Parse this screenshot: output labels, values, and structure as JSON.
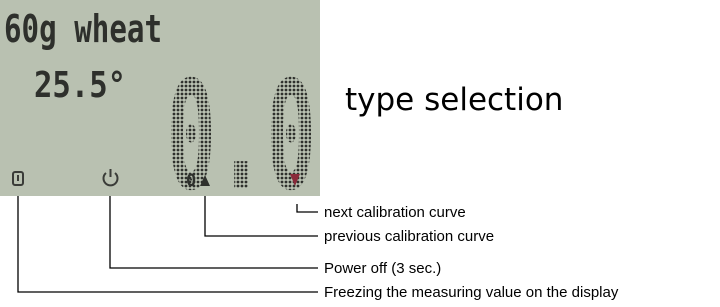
{
  "display": {
    "product": "60g wheat",
    "temperature": "25.5°",
    "reading": "0.0",
    "key_label": "0"
  },
  "heading": "type selection",
  "callouts": [
    "next calibration curve",
    "previous calibration curve",
    "Power off (3 sec.)",
    "Freezing the measuring value on the display"
  ]
}
